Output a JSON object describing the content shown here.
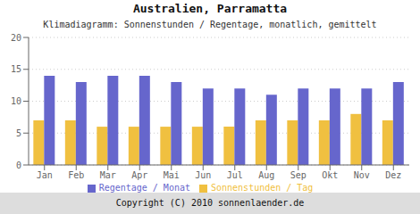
{
  "chart_data": {
    "type": "bar",
    "title": "Australien, Parramatta",
    "subtitle": "Klimadiagramm: Sonnenstunden / Regentage, monatlich, gemittelt",
    "categories": [
      "Jan",
      "Feb",
      "Mar",
      "Apr",
      "Mai",
      "Jun",
      "Jul",
      "Aug",
      "Sep",
      "Okt",
      "Nov",
      "Dez"
    ],
    "series": [
      {
        "name": "Sonnenstunden / Tag",
        "color": "#F0C040",
        "values": [
          7,
          7,
          6,
          6,
          6,
          6,
          6,
          7,
          7,
          7,
          8,
          7
        ]
      },
      {
        "name": "Regentage / Monat",
        "color": "#6666CC",
        "values": [
          14,
          13,
          14,
          14,
          13,
          12,
          12,
          11,
          12,
          12,
          12,
          13
        ]
      }
    ],
    "ylim": [
      0,
      20
    ],
    "yticks": [
      0,
      5,
      10,
      15,
      20
    ],
    "grid": true,
    "legend": "bottom",
    "annotations": [
      "Copyright (C) 2010 sonnenlaender.de"
    ]
  }
}
